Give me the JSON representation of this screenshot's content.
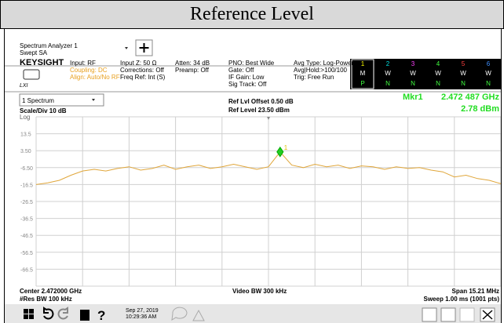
{
  "title": "Reference Level",
  "header": {
    "app": "Spectrum Analyzer 1",
    "mode": "Swept SA",
    "brand": "KEYSIGHT",
    "lxi": "LXI",
    "col1": [
      "Input: RF",
      "Coupling: DC",
      "Align: Auto/No RF"
    ],
    "col2": [
      "Input Z: 50 Ω",
      "Corrections: Off",
      "Freq Ref: Int (S)"
    ],
    "col3": [
      "Atten: 34 dB",
      "Preamp: Off"
    ],
    "col4": [
      "PNO: Best Wide",
      "Gate: Off",
      "IF Gain: Low",
      "Sig Track: Off"
    ],
    "col5": [
      "Avg Type: Log-Power",
      "Avg|Hold:>100/100",
      "Trig: Free Run"
    ],
    "traces": {
      "numbers": [
        "1",
        "2",
        "3",
        "4",
        "5",
        "6"
      ],
      "types": [
        "M",
        "W",
        "W",
        "W",
        "W",
        "W"
      ],
      "detectors": [
        "P",
        "N",
        "N",
        "N",
        "N",
        "N"
      ]
    }
  },
  "display": {
    "window": "1 Spectrum",
    "scale": "Scale/Div 10 dB",
    "log": "Log",
    "ref_offset": "Ref Lvl Offset 0.50 dB",
    "ref_level": "Ref Level 23.50 dBm",
    "marker": {
      "name": "Mkr1",
      "freq": "2.472 487 GHz",
      "id": "1",
      "level": {
        "value": 2.78,
        "label": "2.78 dBm"
      }
    },
    "plot": {
      "ylim": [
        -76.5,
        23.5
      ],
      "yticks": [
        13.5,
        {
          "value": 3.5,
          "label": "3.50"
        },
        {
          "value": -6.5,
          "label": "-6.50"
        },
        -16.5,
        -26.5,
        -36.5,
        -46.5,
        -56.5,
        -66.5
      ],
      "trace": {
        "color": "#e0a63a",
        "values": [
          -16.5,
          -15.5,
          -14,
          -11,
          -8.5,
          -7.5,
          -8.5,
          -7,
          -6,
          -8,
          -7,
          -5,
          -7.5,
          -6,
          -5,
          -7,
          -6,
          -4.5,
          -6,
          -7.5,
          -6,
          2.78,
          -5,
          -6.5,
          -4.5,
          -6,
          -5,
          -7,
          -5.5,
          -6,
          -7.5,
          -6,
          -7,
          -6.5,
          -8,
          -9,
          -12,
          -11,
          -13,
          -14,
          -16
        ]
      }
    },
    "footer": {
      "center": "Center 2.472000 GHz",
      "rbw": "#Res BW 100 kHz",
      "vbw": "Video BW 300 kHz",
      "span": "Span 15.21 MHz",
      "sweep": "Sweep 1.00 ms (1001 pts)"
    }
  },
  "taskbar": {
    "date": "Sep 27, 2019",
    "time": "10:29:36 AM"
  }
}
